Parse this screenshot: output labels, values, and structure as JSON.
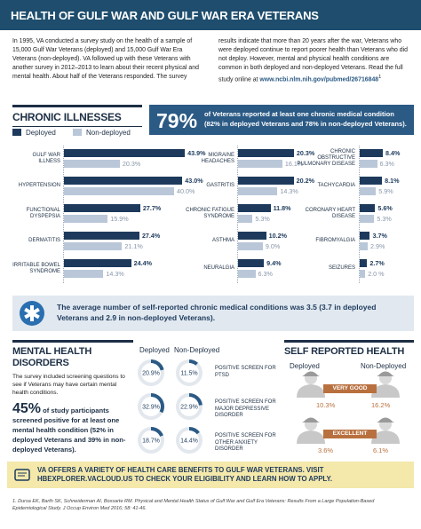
{
  "header": {
    "title": "HEALTH OF GULF WAR AND GULF WAR ERA VETERANS"
  },
  "intro": {
    "text": "In 1995, VA conducted a survey study on the health of a sample of 15,000 Gulf War Veterans (deployed) and 15,000 Gulf War Era Veterans (non-deployed). VA followed up with these Veterans with another survey in 2012–2013 to learn about their recent physical and mental health. About half of the Veterans responded. The survey results indicate that more than 20 years after the war, Veterans who were deployed continue to report poorer health than Veterans who did not deploy. However, mental and physical health conditions are common in both deployed and non-deployed Veterans. Read the full study online at ",
    "link": "www.ncbi.nlm.nih.gov/pubmed/26716848",
    "footnote_ref": "1"
  },
  "chronic": {
    "heading": "CHRONIC ILLNESSES",
    "stat": "79%",
    "stat_text": "of Veterans reported at least one chronic medical condition (82% in deployed Veterans and 78% in non-deployed Veterans).",
    "legend": [
      "Deployed",
      "Non-deployed"
    ],
    "columns": [
      [
        {
          "label": "GULF WAR ILLNESS",
          "deployed": 43.9,
          "deployed_label": "43.9%",
          "non_deployed": 20.3,
          "non_deployed_label": "20.3%"
        },
        {
          "label": "HYPERTENSION",
          "deployed": 43.0,
          "deployed_label": "43.0%",
          "non_deployed": 40.0,
          "non_deployed_label": "40.0%"
        },
        {
          "label": "FUNCTIONAL DYSPEPSIA",
          "deployed": 27.7,
          "deployed_label": "27.7%",
          "non_deployed": 15.9,
          "non_deployed_label": "15.9%"
        },
        {
          "label": "DERMATITIS",
          "deployed": 27.4,
          "deployed_label": "27.4%",
          "non_deployed": 21.1,
          "non_deployed_label": "21.1%"
        },
        {
          "label": "IRRITABLE BOWEL SYNDROME",
          "deployed": 24.4,
          "deployed_label": "24.4%",
          "non_deployed": 14.3,
          "non_deployed_label": "14.3%"
        }
      ],
      [
        {
          "label": "MIGRAINE HEADACHES",
          "deployed": 20.3,
          "deployed_label": "20.3%",
          "non_deployed": 16.1,
          "non_deployed_label": "16.1%"
        },
        {
          "label": "GASTRITIS",
          "deployed": 20.2,
          "deployed_label": "20.2%",
          "non_deployed": 14.3,
          "non_deployed_label": "14.3%"
        },
        {
          "label": "CHRONIC FATIGUE SYNDROME",
          "deployed": 11.8,
          "deployed_label": "11.8%",
          "non_deployed": 5.3,
          "non_deployed_label": "5.3%"
        },
        {
          "label": "ASTHMA",
          "deployed": 10.2,
          "deployed_label": "10.2%",
          "non_deployed": 9.0,
          "non_deployed_label": "9.0%"
        },
        {
          "label": "NEURALGIA",
          "deployed": 9.4,
          "deployed_label": "9.4%",
          "non_deployed": 6.3,
          "non_deployed_label": "6.3%"
        }
      ],
      [
        {
          "label": "CHRONIC OBSTRUCTIVE PULMONARY DISEASE",
          "deployed": 8.4,
          "deployed_label": "8.4%",
          "non_deployed": 6.3,
          "non_deployed_label": "6.3%"
        },
        {
          "label": "TACHYCARDIA",
          "deployed": 8.1,
          "deployed_label": "8.1%",
          "non_deployed": 5.9,
          "non_deployed_label": "5.9%"
        },
        {
          "label": "CORONARY HEART DISEASE",
          "deployed": 5.6,
          "deployed_label": "5.6%",
          "non_deployed": 5.3,
          "non_deployed_label": "5.3%"
        },
        {
          "label": "FIBROMYALGIA",
          "deployed": 3.7,
          "deployed_label": "3.7%",
          "non_deployed": 2.9,
          "non_deployed_label": "2.9%"
        },
        {
          "label": "SEIZURES",
          "deployed": 2.7,
          "deployed_label": "2.7%",
          "non_deployed": 2.0,
          "non_deployed_label": "2.0 %"
        }
      ]
    ],
    "average": "The average number of self-reported chronic medical conditions was 3.5 (3.7 in deployed Veterans and 2.9 in non-deployed Veterans)."
  },
  "mental": {
    "heading": "MENTAL HEALTH DISORDERS",
    "text": "The survey included screening questions to see if Veterans may have certain mental health conditions.",
    "stat": "45%",
    "stat_text": "of study participants screened positive for at least one mental health condition (52% in deployed Veterans and 39% in non-deployed Veterans).",
    "columns": [
      "Deployed",
      "Non-Deployed"
    ],
    "rows": [
      {
        "label": "POSITIVE SCREEN FOR PTSD",
        "deployed": 20.9,
        "deployed_label": "20.9%",
        "non_deployed": 11.5,
        "non_deployed_label": "11.5%"
      },
      {
        "label": "POSITIVE SCREEN FOR MAJOR DEPRESSIVE DISORDER",
        "deployed": 32.9,
        "deployed_label": "32.9%",
        "non_deployed": 22.9,
        "non_deployed_label": "22.9%"
      },
      {
        "label": "POSITIVE SCREEN FOR OTHER ANXIETY DISORDER",
        "deployed": 18.7,
        "deployed_label": "18.7%",
        "non_deployed": 14.4,
        "non_deployed_label": "14.4%"
      }
    ]
  },
  "self_reported": {
    "heading": "SELF REPORTED HEALTH",
    "columns": [
      "Deployed",
      "Non-Deployed"
    ],
    "rows": [
      {
        "label": "VERY GOOD",
        "deployed": "10.3%",
        "non_deployed": "16.2%"
      },
      {
        "label": "EXCELLENT",
        "deployed": "3.6%",
        "non_deployed": "6.1%"
      }
    ]
  },
  "footer": {
    "before": "VA OFFERS A VARIETY OF HEALTH CARE BENEFITS TO GULF WAR VETERANS. VISIT ",
    "link": "HBEXPLORER.VACLOUD.US",
    "after": " TO CHECK YOUR ELIGIBILITY AND LEARN HOW TO APPLY."
  },
  "footnote": "1. Dursa EK, Barth SK, Schneiderman AI, Bossarte RM. Physical and Mental Health Status of Gulf War and Gulf Era Veterans: Results From a Large Population-Based Epidemiological Study. J Occup Environ Med 2016; 58: 41-46."
}
